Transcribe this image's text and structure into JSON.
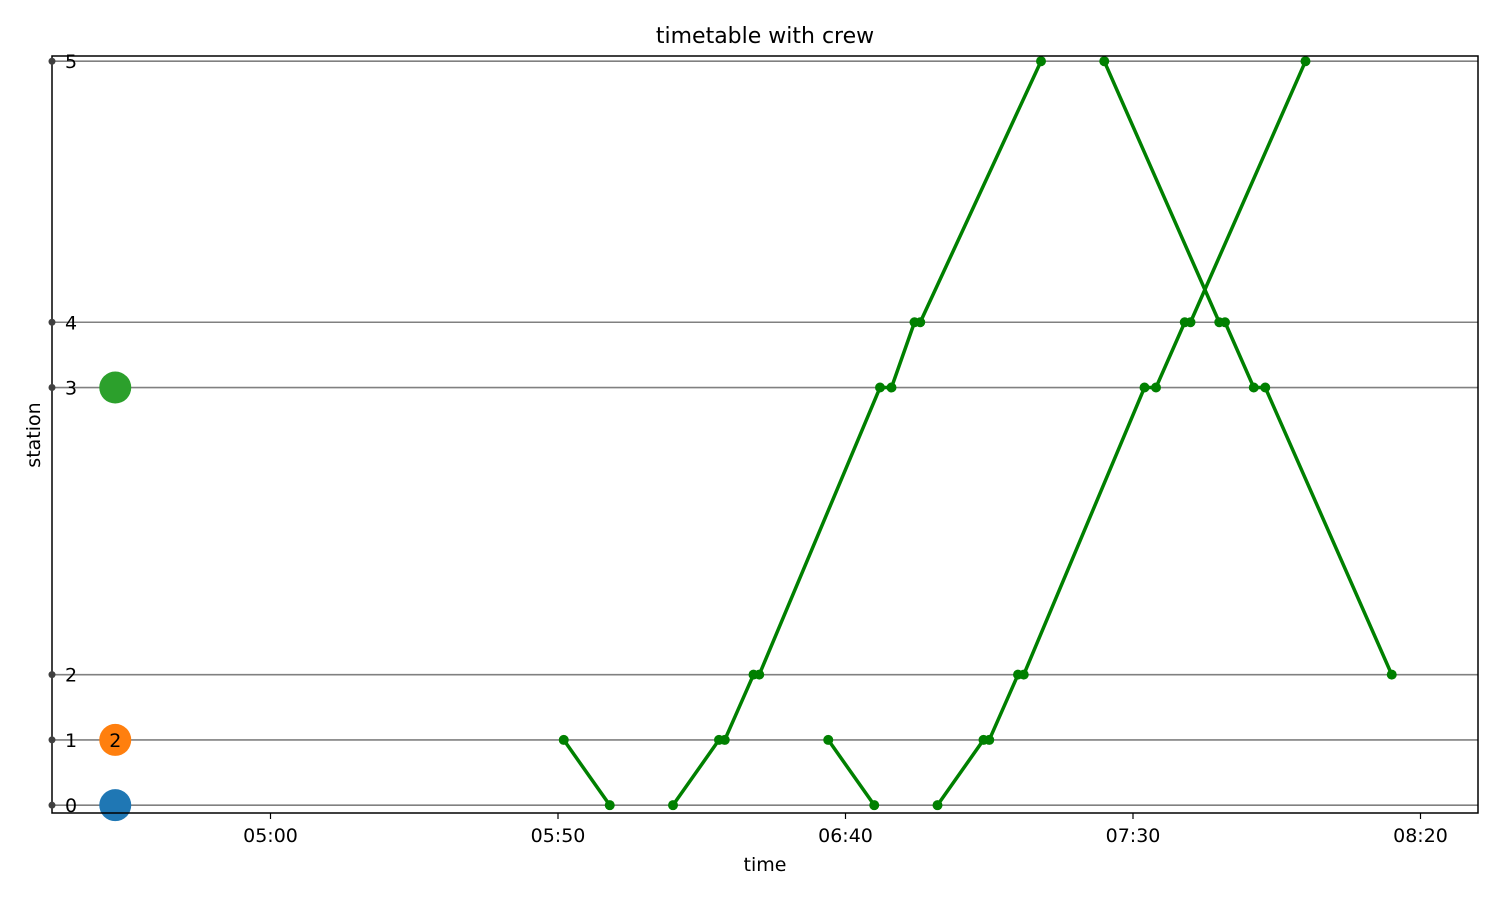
{
  "chart_data": {
    "type": "line",
    "title": "timetable with crew",
    "xlabel": "time",
    "ylabel": "station",
    "x_ticks": [
      "05:00",
      "05:50",
      "06:40",
      "07:30",
      "08:20"
    ],
    "stations": [
      {
        "label": "0",
        "pos": 0
      },
      {
        "label": "1",
        "pos": 0.5
      },
      {
        "label": "2",
        "pos": 1
      },
      {
        "label": "3",
        "pos": 3.2
      },
      {
        "label": "4",
        "pos": 3.7
      },
      {
        "label": "5",
        "pos": 5.7
      }
    ],
    "xlim": [
      "04:22",
      "08:30"
    ],
    "ylim": [
      -0.06,
      5.74
    ],
    "grid": "horizontal",
    "line_color": "#008000",
    "trains": [
      {
        "points": [
          [
            "05:51",
            0.5
          ],
          [
            "05:59",
            0
          ]
        ]
      },
      {
        "points": [
          [
            "06:10",
            0
          ],
          [
            "06:18",
            0.5
          ],
          [
            "06:19",
            0.5
          ],
          [
            "06:24",
            1
          ],
          [
            "06:25",
            1
          ],
          [
            "06:46",
            3.2
          ],
          [
            "06:48",
            3.2
          ],
          [
            "06:52",
            3.7
          ],
          [
            "06:53",
            3.7
          ],
          [
            "07:14",
            5.7
          ]
        ]
      },
      {
        "points": [
          [
            "06:37",
            0.5
          ],
          [
            "06:45",
            0
          ]
        ]
      },
      {
        "points": [
          [
            "06:56",
            0
          ],
          [
            "07:04",
            0.5
          ],
          [
            "07:05",
            0.5
          ],
          [
            "07:10",
            1
          ],
          [
            "07:11",
            1
          ],
          [
            "07:32",
            3.2
          ],
          [
            "07:34",
            3.2
          ],
          [
            "07:39",
            3.7
          ],
          [
            "07:40",
            3.7
          ],
          [
            "08:00",
            5.7
          ]
        ]
      },
      {
        "points": [
          [
            "07:25",
            5.7
          ],
          [
            "07:45",
            3.7
          ],
          [
            "07:46",
            3.7
          ],
          [
            "07:51",
            3.2
          ],
          [
            "07:53",
            3.2
          ],
          [
            "08:15",
            1
          ]
        ]
      }
    ],
    "crew_markers": [
      {
        "station": 0,
        "color": "#1f77b4",
        "label": ""
      },
      {
        "station": 0.5,
        "color": "#ff7f0e",
        "label": "2"
      },
      {
        "station": 3.2,
        "color": "#2ca02c",
        "label": ""
      }
    ],
    "crew_marker_time": "04:33"
  }
}
